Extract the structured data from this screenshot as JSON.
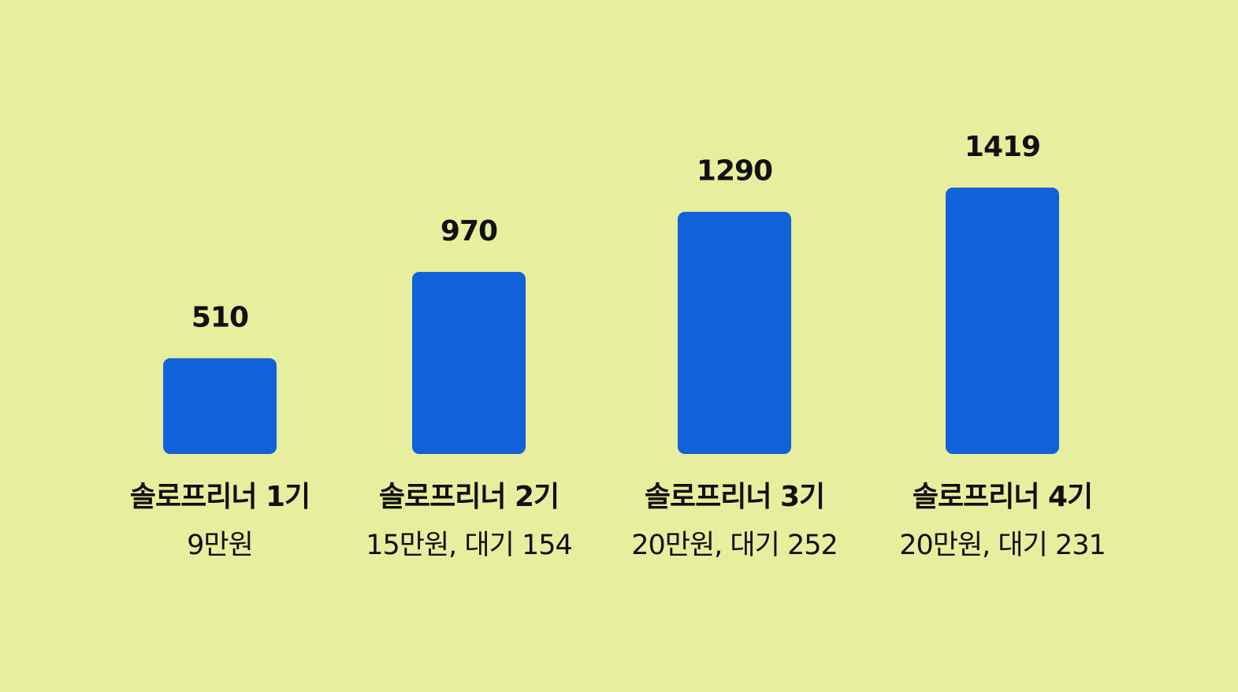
{
  "colors": {
    "background": "#E7EF9E",
    "bar": "#1161DA",
    "text": "#111111"
  },
  "chart_data": {
    "type": "bar",
    "title": "",
    "xlabel": "",
    "ylabel": "",
    "categories": [
      "솔로프리너 1기",
      "솔로프리너 2기",
      "솔로프리너 3기",
      "솔로프리너 4기"
    ],
    "subtitles": [
      "9만원",
      "15만원, 대기 154",
      "20만원, 대기 252",
      "20만원, 대기 231"
    ],
    "values": [
      510,
      970,
      1290,
      1419
    ],
    "data_labels": [
      "510",
      "970",
      "1290",
      "1419"
    ],
    "ylim": [
      0,
      1419
    ],
    "grid": false,
    "legend": "none"
  }
}
